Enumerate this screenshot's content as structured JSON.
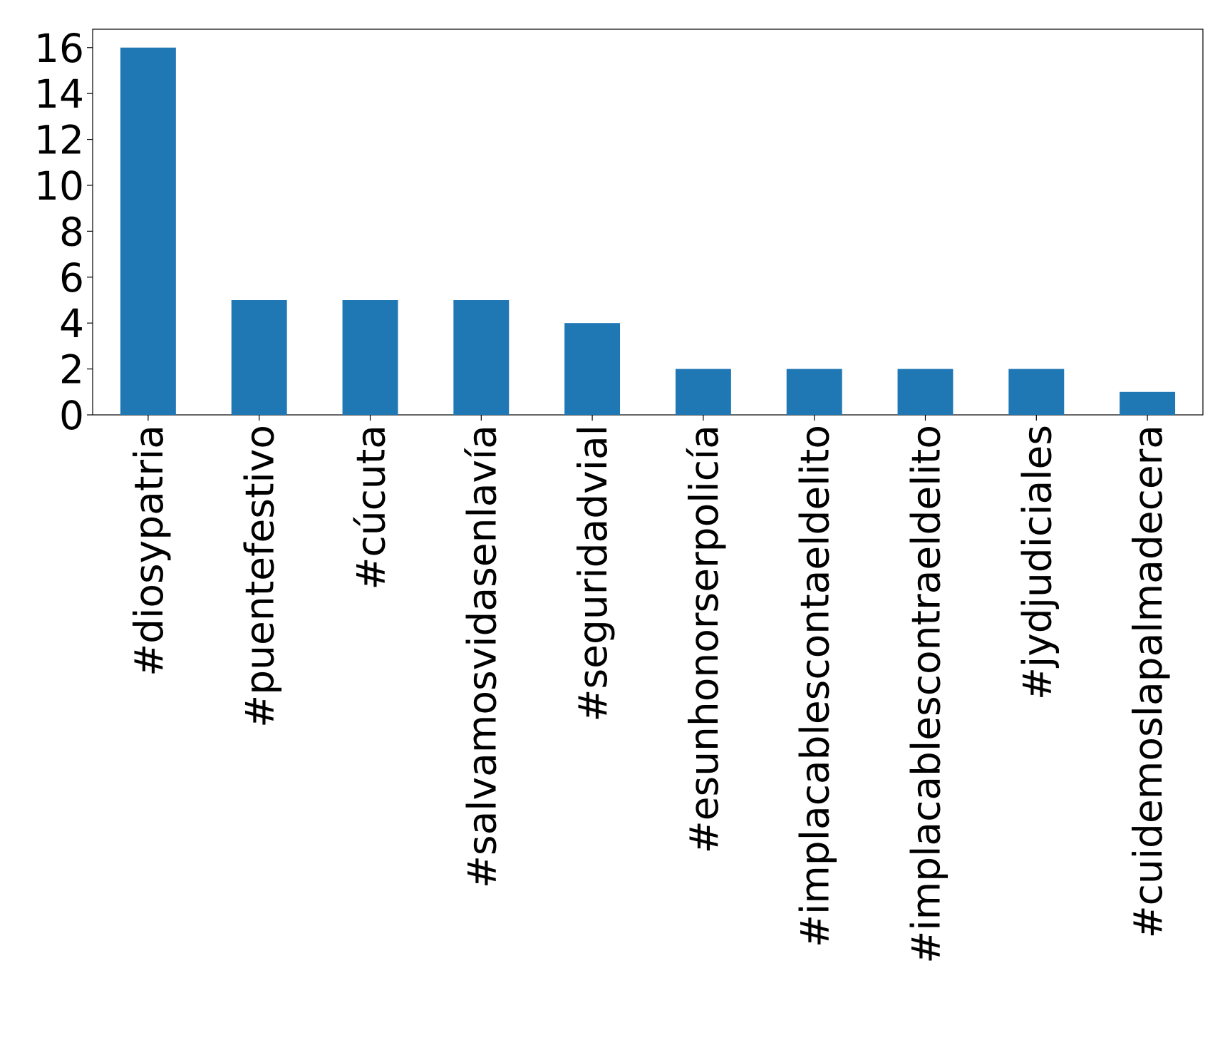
{
  "chart_data": {
    "type": "bar",
    "categories": [
      "#diosypatria",
      "#puentefestivo",
      "#cúcuta",
      "#salvamosvidasenlavía",
      "#seguridadvial",
      "#esunhonorserpolicía",
      "#implacablescontaeldelito",
      "#implacablescontraeldelito",
      "#jydjudiciales",
      "#cuidemoslapalmadecera"
    ],
    "values": [
      16,
      5,
      5,
      5,
      4,
      2,
      2,
      2,
      2,
      1
    ],
    "color": "#1f77b4",
    "ylim": [
      0,
      16.8
    ],
    "yticks": [
      0,
      2,
      4,
      6,
      8,
      10,
      12,
      14,
      16
    ],
    "grid": false
  }
}
